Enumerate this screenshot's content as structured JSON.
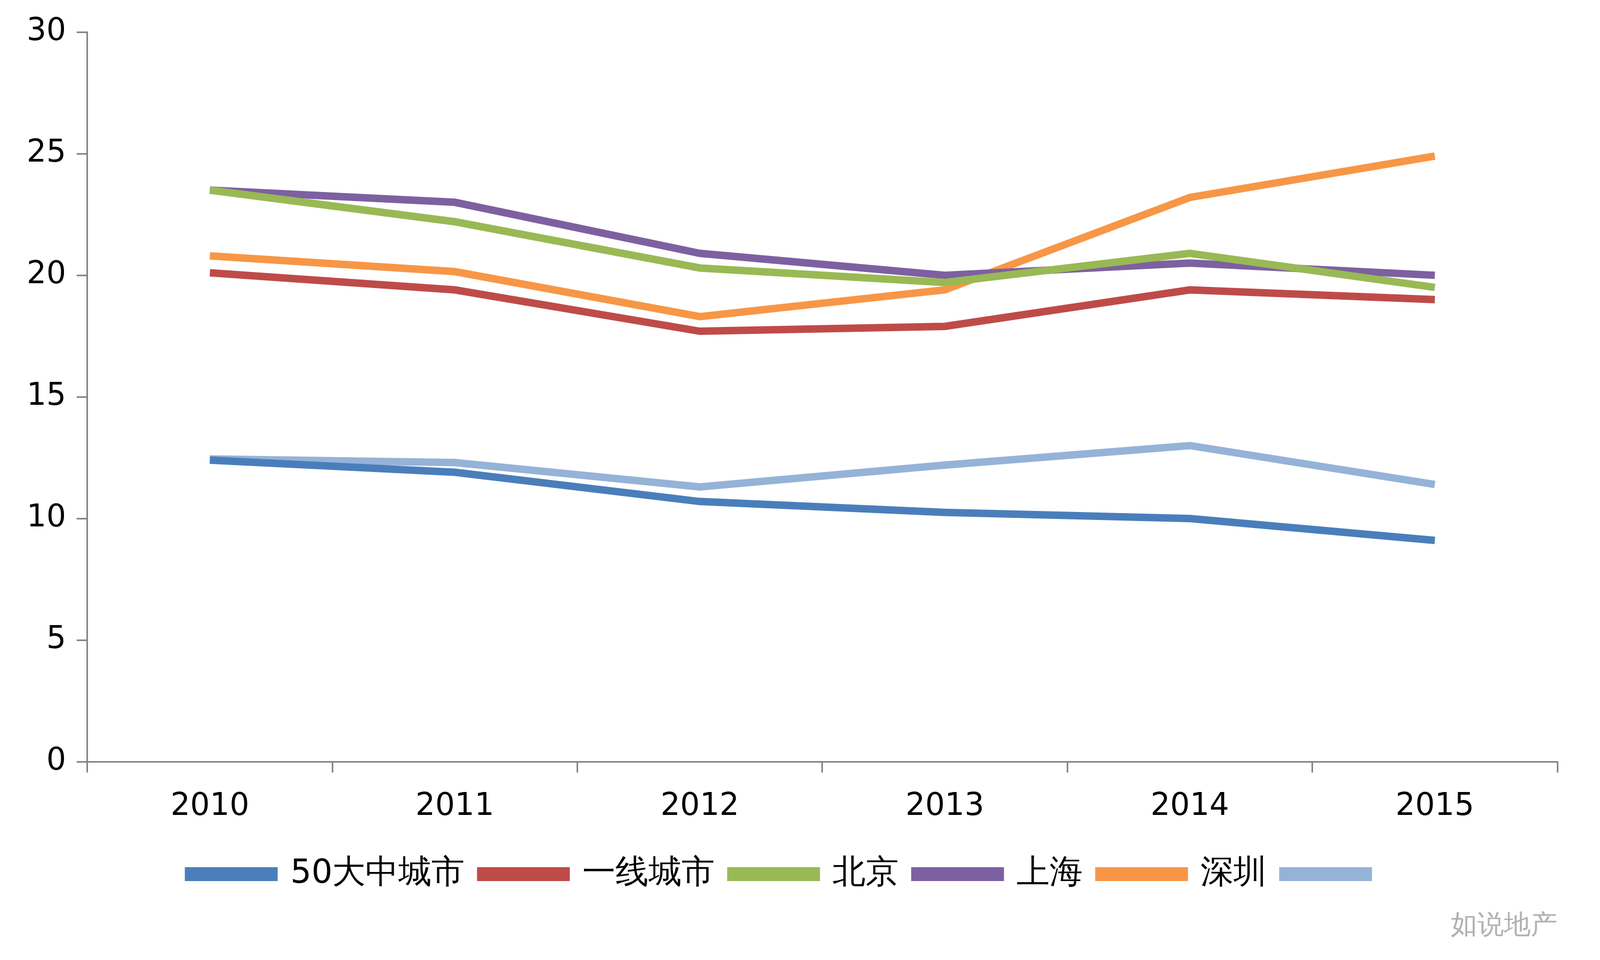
{
  "chart_data": {
    "type": "line",
    "categories": [
      "2010",
      "2011",
      "2012",
      "2013",
      "2014",
      "2015"
    ],
    "series": [
      {
        "name": "50大中城市",
        "color": "#4A7EBB",
        "values": [
          12.4,
          11.9,
          10.7,
          10.25,
          10.0,
          9.1
        ]
      },
      {
        "name": "一线城市",
        "color": "#BE4B48",
        "values": [
          20.1,
          19.4,
          17.7,
          17.9,
          19.4,
          19.0
        ]
      },
      {
        "name": "北京",
        "color": "#98B954",
        "values": [
          23.5,
          22.2,
          20.3,
          19.7,
          20.9,
          19.5
        ]
      },
      {
        "name": "上海",
        "color": "#7D60A0",
        "values": [
          23.5,
          23.0,
          20.9,
          20.0,
          20.5,
          20.0
        ]
      },
      {
        "name": "深圳",
        "color": "#F79646",
        "values": [
          20.8,
          20.15,
          18.3,
          19.4,
          23.2,
          24.9
        ]
      },
      {
        "name": null,
        "color": "#95B3D7",
        "values": [
          12.45,
          12.3,
          11.3,
          12.2,
          13.0,
          11.4
        ]
      }
    ],
    "ylim": [
      0,
      30
    ],
    "yticks": [
      0,
      5,
      10,
      15,
      20,
      25,
      30
    ],
    "grid": false,
    "legend": "bottom",
    "watermark": "如说地产"
  }
}
